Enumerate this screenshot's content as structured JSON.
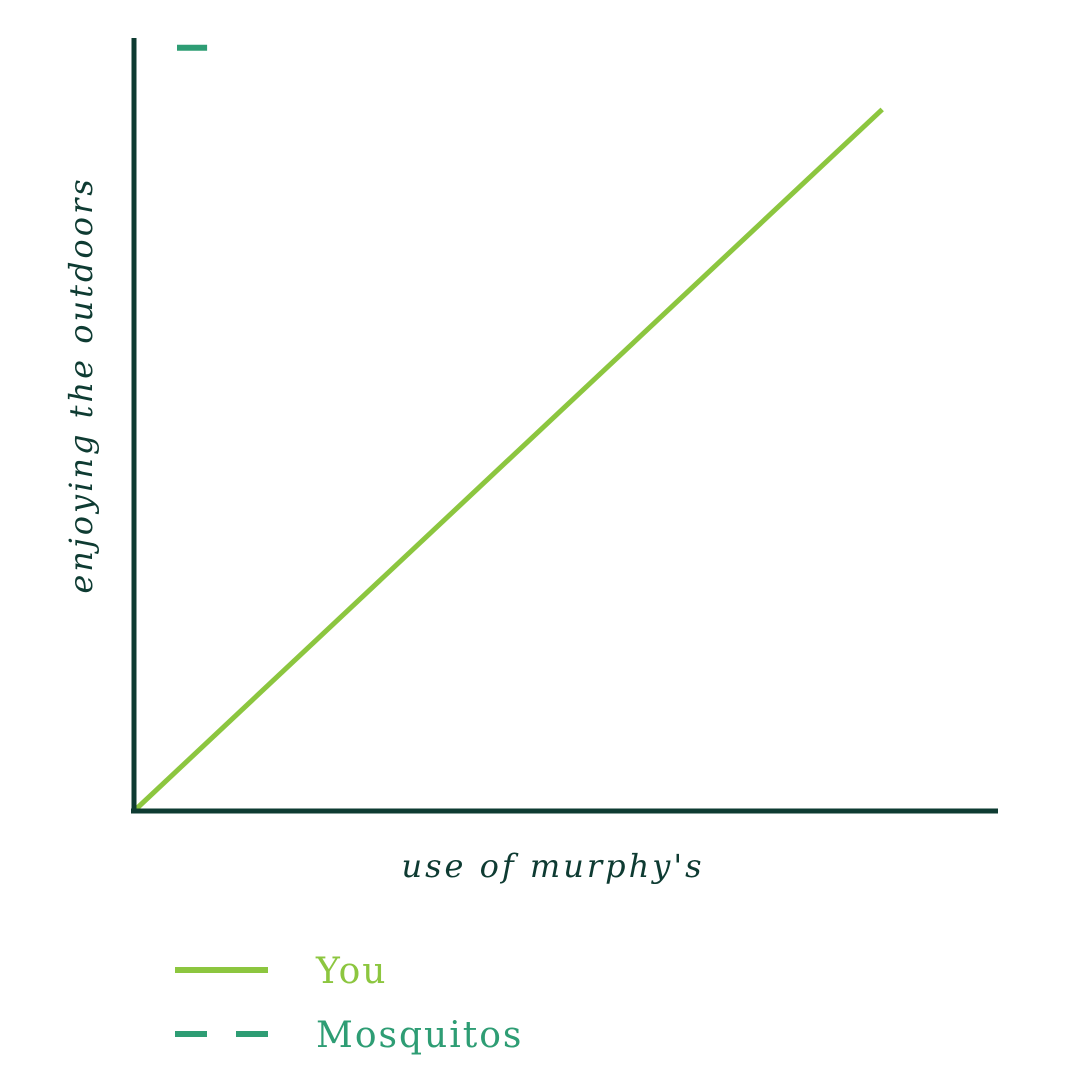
{
  "chart_data": {
    "type": "line",
    "title": "",
    "xlabel": "use of murphy's",
    "ylabel": "enjoying the outdoors",
    "xlim": [
      0,
      100
    ],
    "ylim": [
      0,
      100
    ],
    "grid": false,
    "legend_position": "bottom-left",
    "series": [
      {
        "name": "You",
        "color": "#8cc63f",
        "style": "solid",
        "x": [
          0,
          87
        ],
        "y": [
          0,
          91
        ]
      },
      {
        "name": "Mosquitos",
        "color": "#2e9d74",
        "style": "dashed",
        "x": [
          5,
          8.5
        ],
        "y": [
          99,
          99
        ]
      }
    ]
  },
  "colors": {
    "axis": "#0e3b32",
    "you": "#8cc63f",
    "mosquitos": "#2e9d74"
  }
}
